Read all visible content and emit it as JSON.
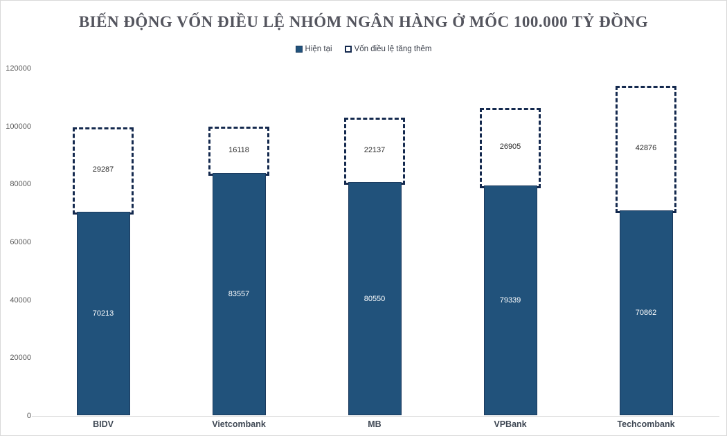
{
  "title": "BIẾN ĐỘNG VỐN ĐIỀU LỆ NHÓM NGÂN HÀNG Ở MỐC 100.000 TỶ ĐỒNG",
  "legend": {
    "items": [
      {
        "label": "Hiện tại",
        "style": "solid"
      },
      {
        "label": "Vốn điều lệ tăng thêm",
        "style": "dashed"
      }
    ]
  },
  "colors": {
    "bar_fill": "#21527b",
    "bar_border": "#1b3a5e",
    "dash_border": "#14294e",
    "axis_line": "#d9d9d9",
    "title_text": "#54555e",
    "tick_text": "#595959"
  },
  "chart_data": {
    "type": "bar",
    "subtype": "stacked",
    "categories": [
      "BIDV",
      "Vietcombank",
      "MB",
      "VPBank",
      "Techcombank"
    ],
    "series": [
      {
        "name": "Hiện tại",
        "values": [
          70213,
          83557,
          80550,
          79339,
          70862
        ],
        "style": "solid-fill"
      },
      {
        "name": "Vốn điều lệ tăng thêm",
        "values": [
          29287,
          16118,
          22137,
          26905,
          42876
        ],
        "style": "dashed-outline"
      }
    ],
    "title": "BIẾN ĐỘNG VỐN ĐIỀU LỆ NHÓM NGÂN HÀNG Ở MỐC 100.000 TỶ ĐỒNG",
    "xlabel": "",
    "ylabel": "",
    "ylim": [
      0,
      120000
    ],
    "y_ticks": [
      0,
      20000,
      40000,
      60000,
      80000,
      100000,
      120000
    ],
    "grid": false,
    "legend_position": "top-center",
    "data_labels": "inside-center"
  }
}
